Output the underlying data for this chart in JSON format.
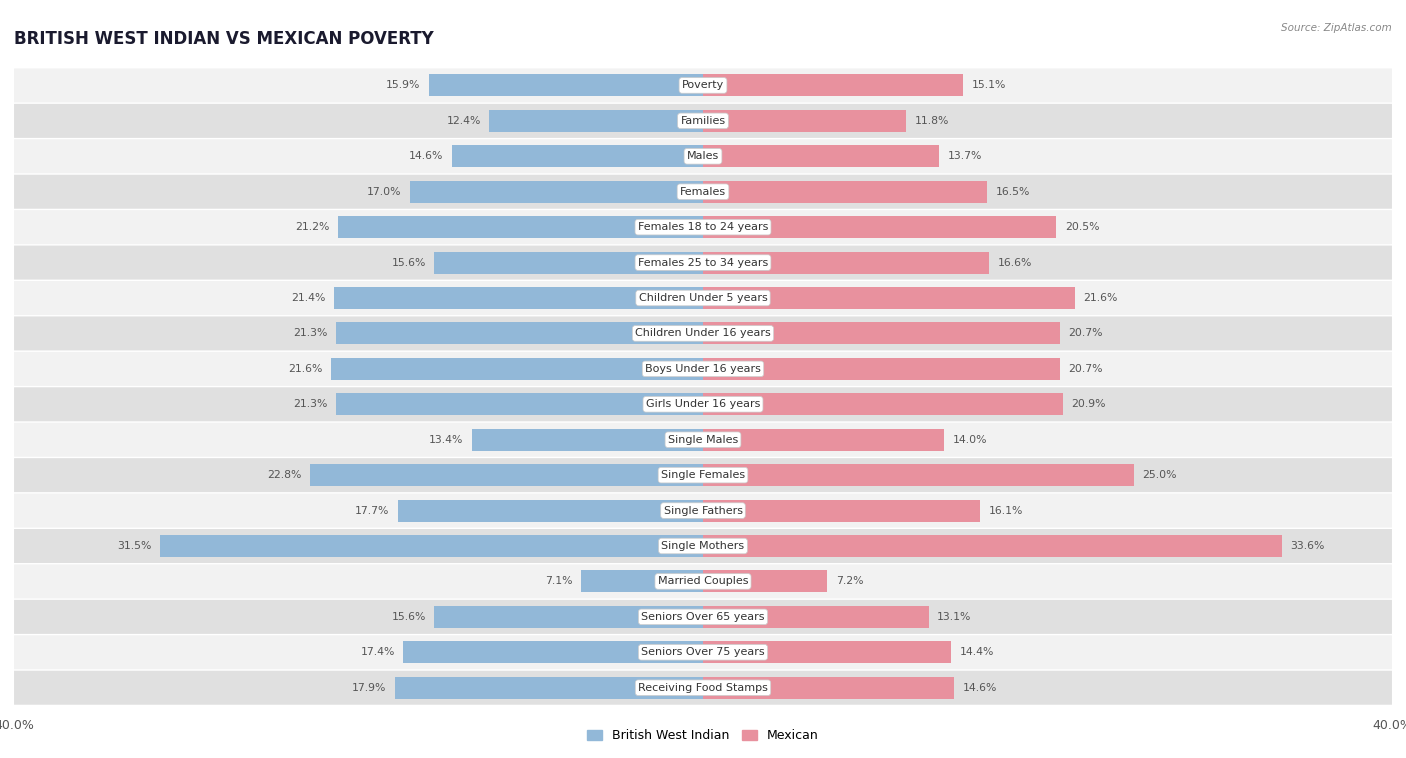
{
  "title": "BRITISH WEST INDIAN VS MEXICAN POVERTY",
  "source": "Source: ZipAtlas.com",
  "categories": [
    "Poverty",
    "Families",
    "Males",
    "Females",
    "Females 18 to 24 years",
    "Females 25 to 34 years",
    "Children Under 5 years",
    "Children Under 16 years",
    "Boys Under 16 years",
    "Girls Under 16 years",
    "Single Males",
    "Single Females",
    "Single Fathers",
    "Single Mothers",
    "Married Couples",
    "Seniors Over 65 years",
    "Seniors Over 75 years",
    "Receiving Food Stamps"
  ],
  "british_values": [
    15.9,
    12.4,
    14.6,
    17.0,
    21.2,
    15.6,
    21.4,
    21.3,
    21.6,
    21.3,
    13.4,
    22.8,
    17.7,
    31.5,
    7.1,
    15.6,
    17.4,
    17.9
  ],
  "mexican_values": [
    15.1,
    11.8,
    13.7,
    16.5,
    20.5,
    16.6,
    21.6,
    20.7,
    20.7,
    20.9,
    14.0,
    25.0,
    16.1,
    33.6,
    7.2,
    13.1,
    14.4,
    14.6
  ],
  "british_color": "#92b8d8",
  "mexican_color": "#e8919e",
  "background_color": "#ffffff",
  "row_bg_light": "#f2f2f2",
  "row_bg_dark": "#e0e0e0",
  "axis_max": 40.0,
  "bar_height": 0.62,
  "label_fontsize": 8.0,
  "value_fontsize": 7.8,
  "title_fontsize": 12,
  "legend_label_british": "British West Indian",
  "legend_label_mexican": "Mexican"
}
